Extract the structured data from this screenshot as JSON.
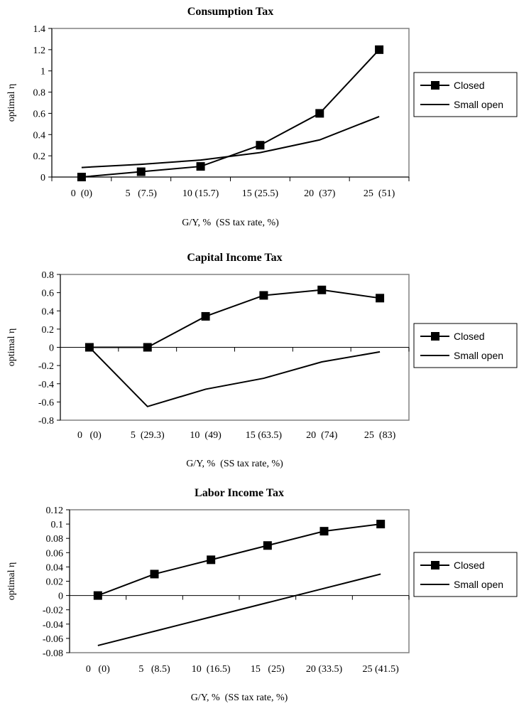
{
  "chart_data": [
    {
      "type": "line",
      "title": "Consumption Tax",
      "ylabel": "optimal η",
      "xlabel": "G/Y, %  (SS tax rate, %)",
      "categories": [
        "0  (0)",
        "5   (7.5)",
        "10 (15.7)",
        "15 (25.5)",
        "20  (37)",
        "25  (51)"
      ],
      "ylim": [
        0,
        1.4
      ],
      "yticks": [
        "0",
        "0.2",
        "0.4",
        "0.6",
        "0.8",
        "1",
        "1.2",
        "1.4"
      ],
      "series": [
        {
          "name": "Closed",
          "values": [
            0,
            0.05,
            0.1,
            0.3,
            0.6,
            1.2
          ],
          "marker": "square"
        },
        {
          "name": "Small open",
          "values": [
            0.09,
            0.12,
            0.16,
            0.23,
            0.35,
            0.57
          ],
          "marker": "none"
        }
      ],
      "legend": "right"
    },
    {
      "type": "line",
      "title": "Capital Income Tax",
      "ylabel": "optimal η",
      "xlabel": "G/Y, %  (SS tax rate, %)",
      "categories": [
        "0   (0)",
        "5  (29.3)",
        "10  (49)",
        "15 (63.5)",
        "20  (74)",
        "25  (83)"
      ],
      "ylim": [
        -0.8,
        0.8
      ],
      "yticks": [
        "-0.8",
        "-0.6",
        "-0.4",
        "-0.2",
        "0",
        "0.2",
        "0.4",
        "0.6",
        "0.8"
      ],
      "series": [
        {
          "name": "Closed",
          "values": [
            0,
            0,
            0.34,
            0.57,
            0.63,
            0.54
          ],
          "marker": "square"
        },
        {
          "name": "Small open",
          "values": [
            0,
            -0.65,
            -0.46,
            -0.34,
            -0.16,
            -0.05
          ],
          "marker": "none"
        }
      ],
      "legend": "right"
    },
    {
      "type": "line",
      "title": "Labor Income Tax",
      "ylabel": "optimal η",
      "xlabel": "G/Y, %  (SS tax rate, %)",
      "categories": [
        "0   (0)",
        "5   (8.5)",
        "10  (16.5)",
        "15   (25)",
        "20 (33.5)",
        "25 (41.5)"
      ],
      "ylim": [
        -0.08,
        0.12
      ],
      "yticks": [
        "-0.08",
        "-0.06",
        "-0.04",
        "-0.02",
        "0",
        "0.02",
        "0.04",
        "0.06",
        "0.08",
        "0.1",
        "0.12"
      ],
      "series": [
        {
          "name": "Closed",
          "values": [
            0,
            0.03,
            0.05,
            0.07,
            0.09,
            0.1
          ],
          "marker": "square"
        },
        {
          "name": "Small open",
          "values": [
            -0.07,
            -0.05,
            -0.03,
            -0.01,
            0.01,
            0.03
          ],
          "marker": "none"
        }
      ],
      "legend": "right"
    }
  ]
}
